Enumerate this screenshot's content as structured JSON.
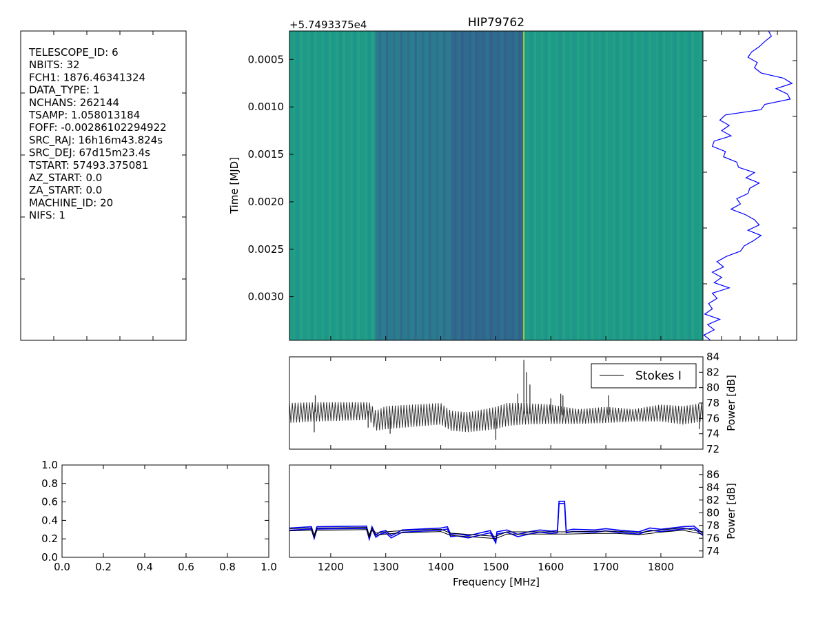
{
  "header_panel": {
    "lines": [
      "TELESCOPE_ID:  6",
      "NBITS:  32",
      "FCH1:  1876.46341324",
      "DATA_TYPE:  1",
      "NCHANS:  262144",
      "TSAMP:  1.058013184",
      "FOFF:  -0.00286102294922",
      "SRC_RAJ:  16h16m43.824s",
      "SRC_DEJ:  67d15m23.4s",
      "TSTART:  57493.375081",
      "AZ_START:  0.0",
      "ZA_START:  0.0",
      "MACHINE_ID:  20",
      "NIFS:  1"
    ]
  },
  "chart_data": [
    {
      "type": "heatmap",
      "title": "HIP79762",
      "offset_label": "+5.7493375e4",
      "ylabel": "Time [MJD]",
      "ylim": [
        0.0002,
        0.00346
      ],
      "y_ticks": [
        "0.0005",
        "0.0010",
        "0.0015",
        "0.0020",
        "0.0025",
        "0.0030"
      ],
      "y_tick_values": [
        0.0005,
        0.001,
        0.0015,
        0.002,
        0.0025,
        0.003
      ],
      "xlim": [
        1125,
        1876.46
      ],
      "colormap": "viridis",
      "band_structure": [
        {
          "range": [
            1125,
            1281
          ],
          "level": "green"
        },
        {
          "range": [
            1281,
            1418
          ],
          "level": "blue-teal"
        },
        {
          "range": [
            1418,
            1550
          ],
          "level": "dark-blue"
        },
        {
          "range": [
            1550,
            1876.46
          ],
          "level": "green"
        }
      ],
      "bright_line_mhz": 1550
    },
    {
      "type": "line",
      "role": "time-series",
      "values": [
        0.7,
        0.73,
        0.66,
        0.6,
        0.52,
        0.48,
        0.58,
        0.55,
        0.62,
        0.86,
        0.95,
        0.78,
        0.9,
        0.93,
        0.66,
        0.62,
        0.24,
        0.18,
        0.28,
        0.2,
        0.3,
        0.12,
        0.1,
        0.24,
        0.22,
        0.36,
        0.38,
        0.55,
        0.46,
        0.6,
        0.5,
        0.48,
        0.36,
        0.4,
        0.3,
        0.45,
        0.55,
        0.6,
        0.48,
        0.62,
        0.54,
        0.44,
        0.4,
        0.25,
        0.15,
        0.22,
        0.1,
        0.2,
        0.12,
        0.28,
        0.1,
        0.15,
        0.06,
        0.1,
        0.02,
        0.18,
        0.05,
        0.12,
        0.01,
        0.08
      ]
    },
    {
      "type": "line",
      "role": "spectrum",
      "legend": "Stokes I",
      "legend_position": "upper-right",
      "xlim": [
        1125,
        1876.46
      ],
      "ylim": [
        72,
        84
      ],
      "ylabel": "Power [dB]",
      "y_ticks": [
        "72",
        "74",
        "76",
        "78",
        "80",
        "82",
        "84"
      ],
      "y_tick_values": [
        72,
        74,
        76,
        78,
        80,
        82,
        84
      ],
      "color": "#333333",
      "envelope_upper": {
        "x": [
          1125,
          1170,
          1270,
          1282,
          1300,
          1400,
          1418,
          1450,
          1500,
          1520,
          1550,
          1600,
          1650,
          1700,
          1750,
          1800,
          1840,
          1876
        ],
        "y": [
          78.0,
          78.1,
          78.1,
          77.0,
          77.6,
          78.0,
          77.0,
          76.8,
          77.5,
          78.0,
          78.0,
          77.8,
          77.2,
          77.5,
          77.2,
          77.8,
          77.6,
          78.0
        ]
      },
      "envelope_lower": {
        "x": [
          1125,
          1170,
          1270,
          1282,
          1300,
          1400,
          1418,
          1450,
          1500,
          1520,
          1550,
          1600,
          1650,
          1700,
          1750,
          1800,
          1840,
          1876
        ],
        "y": [
          75.4,
          75.6,
          75.8,
          74.4,
          74.6,
          75.2,
          74.4,
          74.2,
          74.6,
          75.0,
          75.2,
          75.3,
          75.3,
          75.4,
          75.6,
          75.6,
          75.2,
          75.6
        ]
      },
      "spikes": [
        {
          "x": 1172,
          "y": 79.0
        },
        {
          "x": 1170,
          "y": 74.2
        },
        {
          "x": 1268,
          "y": 74.8
        },
        {
          "x": 1308,
          "y": 74.0
        },
        {
          "x": 1500,
          "y": 73.2
        },
        {
          "x": 1540,
          "y": 79.2
        },
        {
          "x": 1551,
          "y": 83.6
        },
        {
          "x": 1556,
          "y": 82.0
        },
        {
          "x": 1562,
          "y": 80.4
        },
        {
          "x": 1600,
          "y": 78.6
        },
        {
          "x": 1618,
          "y": 79.2
        },
        {
          "x": 1622,
          "y": 79.0
        },
        {
          "x": 1705,
          "y": 79.0
        },
        {
          "x": 1870,
          "y": 74.6
        }
      ]
    },
    {
      "type": "line",
      "role": "empty-axes",
      "xlim": [
        0.0,
        1.0
      ],
      "ylim": [
        0.0,
        1.0
      ],
      "x_ticks": [
        "0.0",
        "0.2",
        "0.4",
        "0.6",
        "0.8",
        "1.0"
      ],
      "y_ticks": [
        "0.0",
        "0.2",
        "0.4",
        "0.6",
        "0.8",
        "1.0"
      ],
      "tick_values": [
        0.0,
        0.2,
        0.4,
        0.6,
        0.8,
        1.0
      ]
    },
    {
      "type": "line",
      "role": "kurtosis-spectrum",
      "xlim": [
        1125,
        1876.46
      ],
      "ylim": [
        73,
        87.5
      ],
      "xlabel": "Frequency [MHz]",
      "ylabel": "Power [dB]",
      "x_ticks": [
        "1200",
        "1300",
        "1400",
        "1500",
        "1600",
        "1700",
        "1800"
      ],
      "x_tick_values": [
        1200,
        1300,
        1400,
        1500,
        1600,
        1700,
        1800
      ],
      "y_ticks": [
        "74",
        "76",
        "78",
        "80",
        "82",
        "84",
        "86"
      ],
      "y_tick_values": [
        74,
        76,
        78,
        80,
        82,
        84,
        86
      ],
      "series": [
        {
          "color": "#0000ff",
          "x": [
            1125,
            1165,
            1170,
            1175,
            1265,
            1270,
            1275,
            1282,
            1290,
            1300,
            1310,
            1330,
            1400,
            1412,
            1418,
            1430,
            1450,
            1470,
            1490,
            1500,
            1502,
            1520,
            1540,
            1560,
            1580,
            1600,
            1612,
            1615,
            1625,
            1628,
            1640,
            1680,
            1700,
            1720,
            1760,
            1780,
            1800,
            1840,
            1860,
            1876
          ],
          "y": [
            77.6,
            77.8,
            76.3,
            77.8,
            77.9,
            76.2,
            77.8,
            76.5,
            77.0,
            77.2,
            76.4,
            77.3,
            77.6,
            77.8,
            76.6,
            76.7,
            76.4,
            76.8,
            77.2,
            75.6,
            77.0,
            77.3,
            76.6,
            77.0,
            77.3,
            77.1,
            77.2,
            81.8,
            81.8,
            77.2,
            77.4,
            77.3,
            77.5,
            77.3,
            77.0,
            77.6,
            77.4,
            77.8,
            77.9,
            76.8
          ]
        },
        {
          "color": "#000000",
          "x": [
            1125,
            1165,
            1170,
            1175,
            1265,
            1270,
            1275,
            1282,
            1300,
            1330,
            1400,
            1418,
            1450,
            1500,
            1520,
            1560,
            1600,
            1612,
            1630,
            1680,
            1720,
            1760,
            1800,
            1840,
            1876
          ],
          "y": [
            77.5,
            77.6,
            76.5,
            77.6,
            77.7,
            76.5,
            77.6,
            76.8,
            77.0,
            77.2,
            77.4,
            76.8,
            76.6,
            76.3,
            77.0,
            77.0,
            77.0,
            77.0,
            77.0,
            77.1,
            77.1,
            76.9,
            77.3,
            77.6,
            77.0
          ]
        }
      ]
    }
  ]
}
